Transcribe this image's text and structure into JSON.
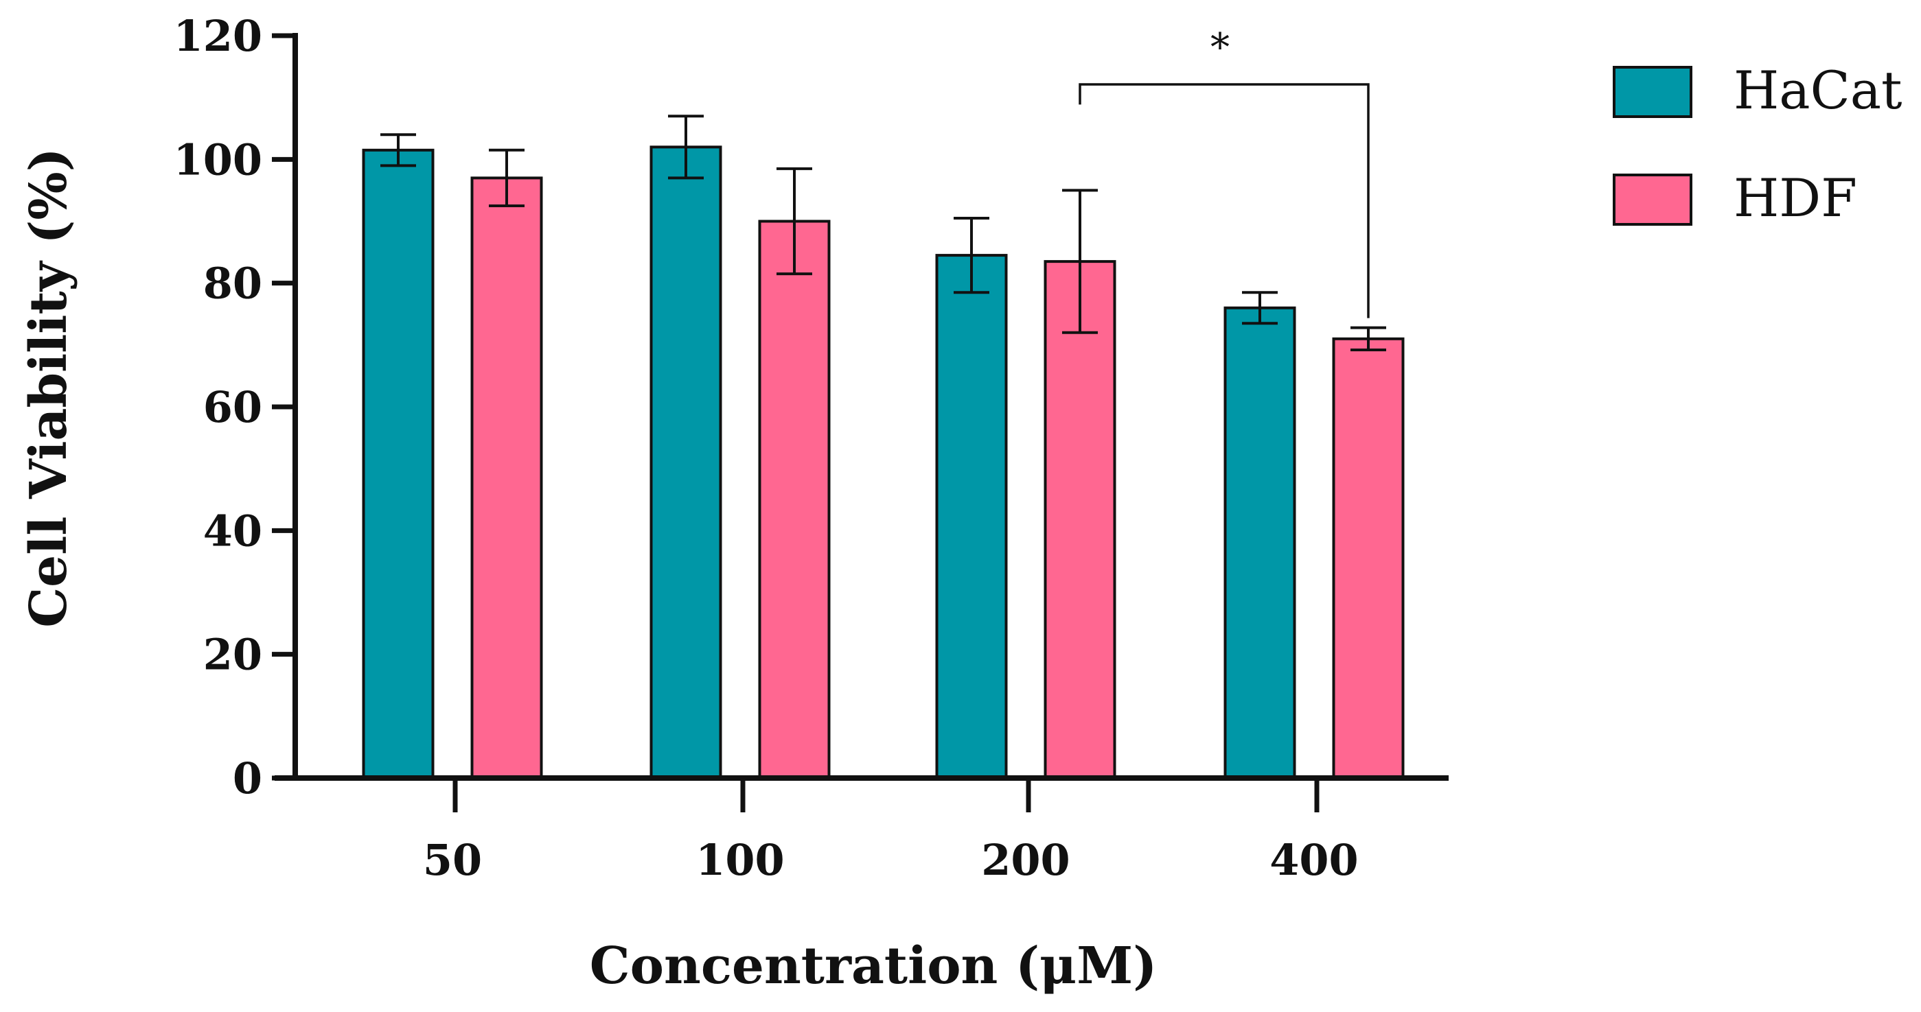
{
  "chart_data": {
    "type": "bar",
    "title": "",
    "xlabel": "Concentration (μM)",
    "ylabel": "Cell Viability (%)",
    "ylim": [
      0,
      120
    ],
    "yticks": [
      0,
      20,
      40,
      60,
      80,
      100,
      120
    ],
    "categories": [
      "50",
      "100",
      "200",
      "400"
    ],
    "series": [
      {
        "name": "HaCat",
        "color": "#0097a7",
        "values": [
          101.5,
          102.0,
          84.5,
          76.0
        ],
        "errors": [
          2.5,
          5.0,
          6.0,
          2.5
        ]
      },
      {
        "name": "HDF",
        "color": "#ff6791",
        "values": [
          97.0,
          90.0,
          83.5,
          71.0
        ],
        "errors": [
          4.5,
          8.5,
          11.5,
          1.8
        ]
      }
    ],
    "legend_position": "top-right",
    "annotations": [
      {
        "label": "*",
        "from": {
          "category": "200",
          "series": "HDF"
        },
        "to": {
          "category": "400",
          "series": "HDF"
        }
      }
    ]
  }
}
